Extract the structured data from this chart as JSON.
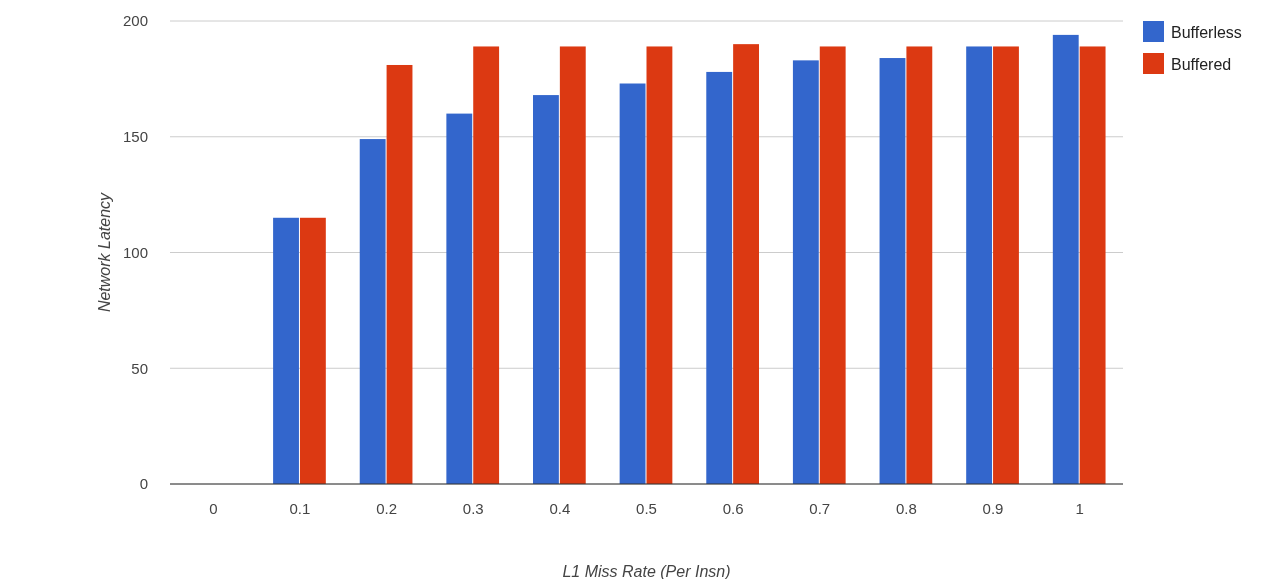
{
  "chart_data": {
    "type": "bar",
    "xlabel": "L1 Miss Rate (Per Insn)",
    "ylabel": "Network Latency",
    "categories": [
      "0",
      "0.1",
      "0.2",
      "0.3",
      "0.4",
      "0.5",
      "0.6",
      "0.7",
      "0.8",
      "0.9",
      "1"
    ],
    "series": [
      {
        "name": "Bufferless",
        "color": "#3366cc",
        "values": [
          0,
          115,
          149,
          160,
          168,
          173,
          178,
          183,
          184,
          189,
          194
        ]
      },
      {
        "name": "Buffered",
        "color": "#dc3912",
        "values": [
          0,
          115,
          181,
          189,
          189,
          189,
          190,
          189,
          189,
          189,
          189
        ]
      }
    ],
    "ylim": [
      0,
      200
    ],
    "yticks": [
      0,
      50,
      100,
      150,
      200
    ],
    "grid": "y",
    "legend": "right"
  }
}
